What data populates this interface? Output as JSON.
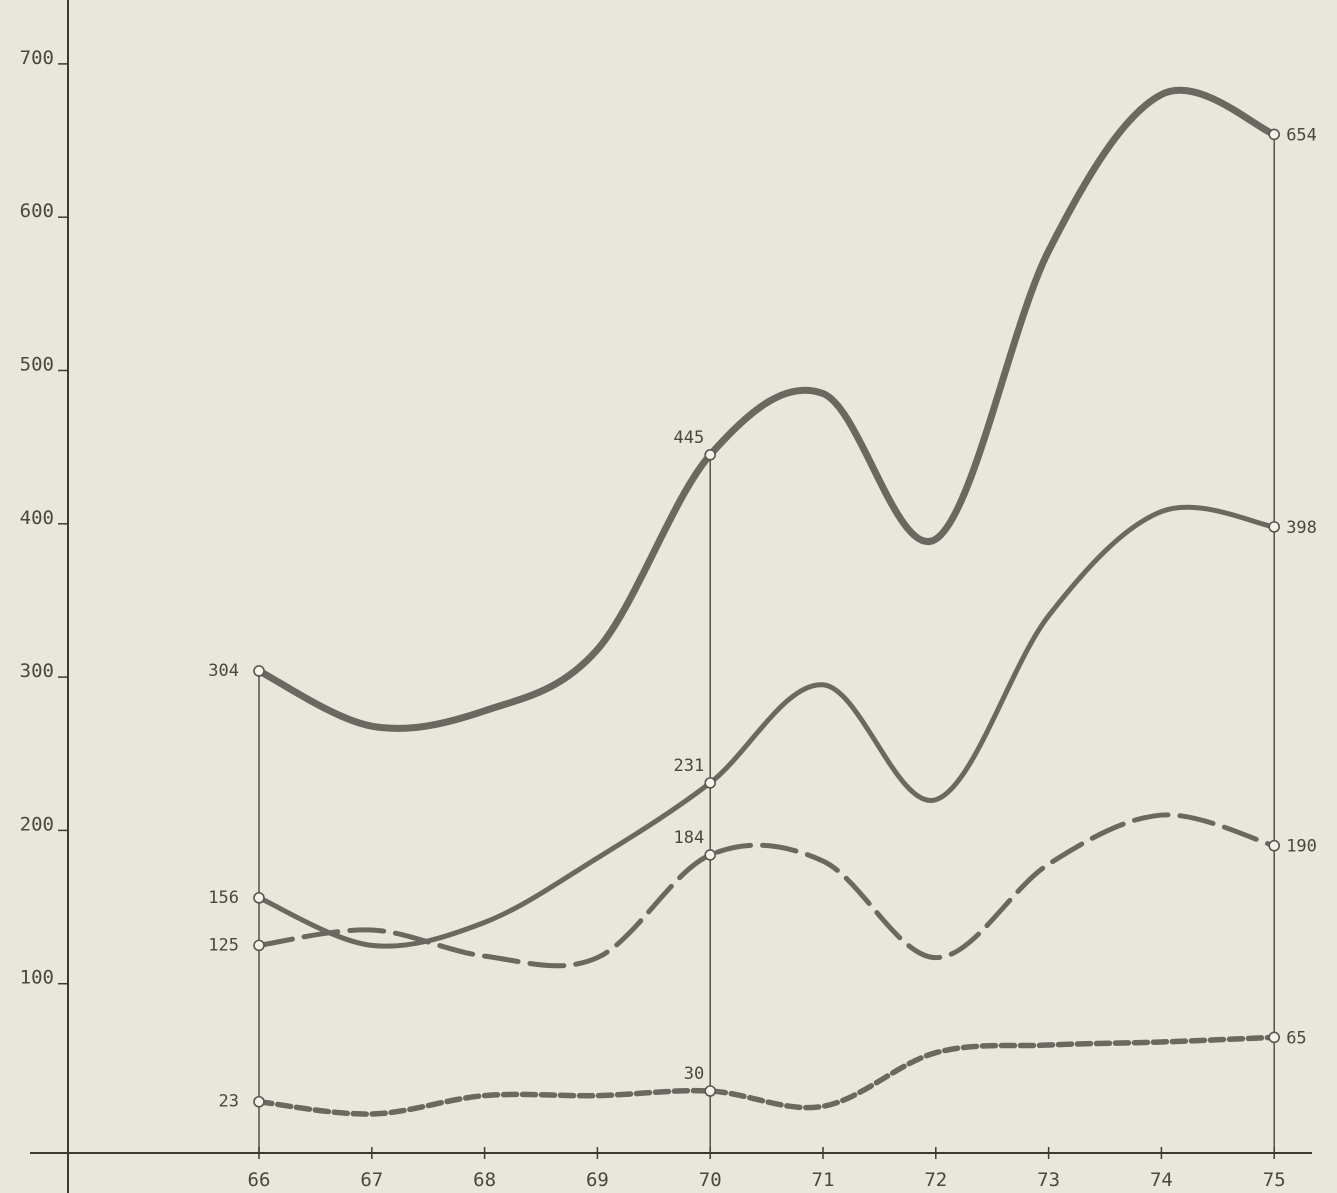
{
  "chart_data": {
    "type": "line",
    "x": [
      "66",
      "67",
      "68",
      "69",
      "70",
      "71",
      "72",
      "73",
      "74",
      "75"
    ],
    "xlim": [
      64.5,
      75.3
    ],
    "ylim": [
      -20,
      720
    ],
    "yticks": [
      100,
      200,
      300,
      400,
      500,
      600,
      700
    ],
    "ytick_labels": [
      "100",
      "200",
      "300",
      "400",
      "500",
      "600",
      "700"
    ],
    "title": "",
    "xlabel": "",
    "ylabel": "",
    "grid": false,
    "reference_lines_at_x": [
      66,
      70,
      75
    ],
    "series": [
      {
        "values": [
          304,
          268,
          278,
          318,
          445,
          485,
          390,
          578,
          680,
          654
        ],
        "style": "solid-thick",
        "color": "#6b6862",
        "labels": {
          "0": "304",
          "4": "445",
          "9": "654"
        }
      },
      {
        "values": [
          156,
          125,
          140,
          182,
          231,
          295,
          220,
          340,
          408,
          398
        ],
        "style": "solid",
        "color": "#6b6862",
        "labels": {
          "0": "156",
          "4": "231",
          "9": "398"
        }
      },
      {
        "values": [
          125,
          135,
          118,
          117,
          184,
          180,
          117,
          178,
          210,
          190
        ],
        "style": "long-dash",
        "color": "#6b6862",
        "labels": {
          "0": "125",
          "4": "184",
          "9": "190"
        }
      },
      {
        "values": [
          23,
          15,
          27,
          27,
          30,
          20,
          55,
          60,
          62,
          65
        ],
        "style": "short-dash",
        "color": "#6b6862",
        "labels": {
          "0": "23",
          "4": "30",
          "9": "65"
        }
      }
    ]
  }
}
